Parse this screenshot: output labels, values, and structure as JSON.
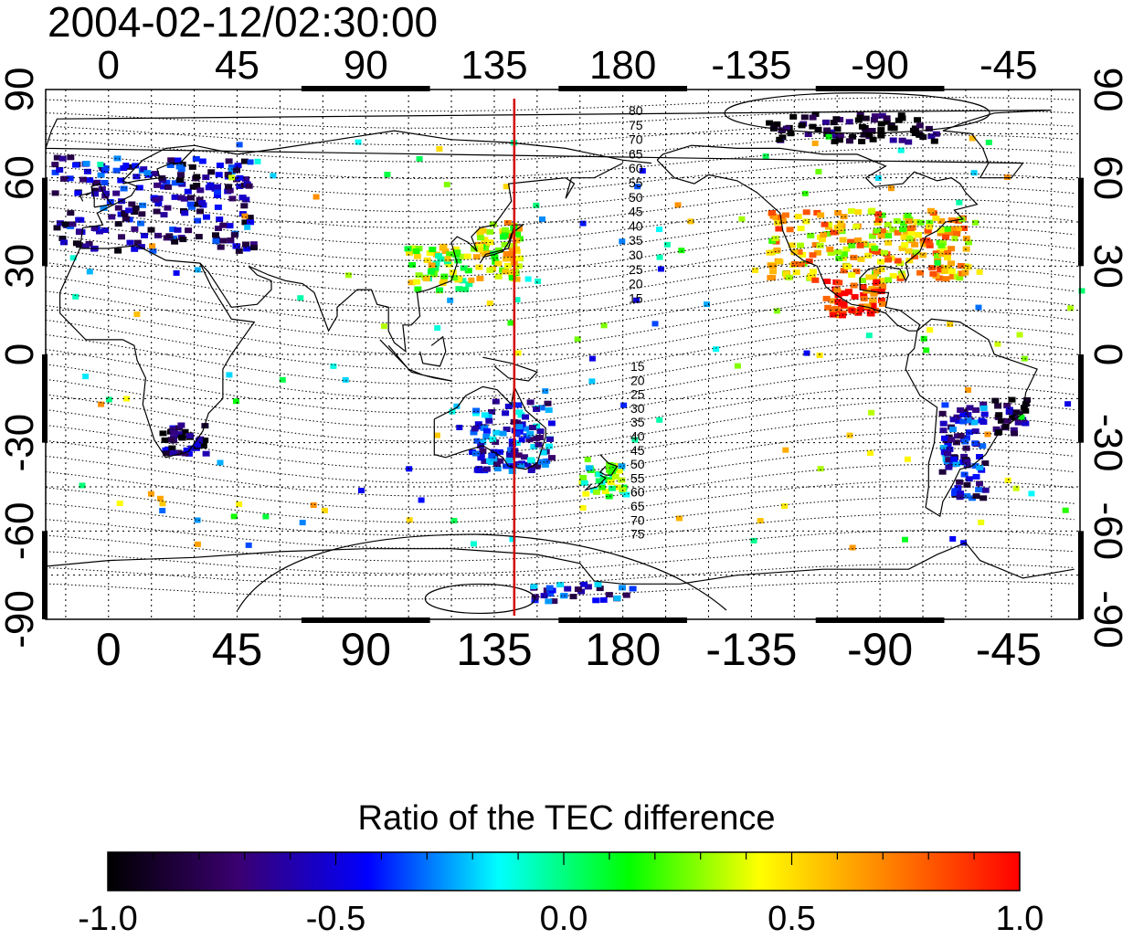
{
  "timestamp": "2004-02-12/02:30:00",
  "axes": {
    "lon_ticks": [
      "0",
      "45",
      "90",
      "135",
      "180",
      "-135",
      "-90",
      "-45"
    ],
    "lat_ticks": [
      "90",
      "60",
      "30",
      "0",
      "-30",
      "-60",
      "-90"
    ],
    "lon_range_deg": [
      -22,
      340
    ],
    "lat_range_deg": [
      -90,
      90
    ],
    "grid": "dotted, every 15 degrees"
  },
  "meridian_marker": {
    "lon": 142,
    "color": "#d40000"
  },
  "contours": {
    "north_labels": [
      "80",
      "75",
      "70",
      "65",
      "60",
      "55",
      "50",
      "45",
      "40",
      "35",
      "30",
      "25",
      "20",
      "15"
    ],
    "south_labels": [
      "15",
      "20",
      "25",
      "30",
      "35",
      "40",
      "45",
      "50",
      "55",
      "60",
      "65",
      "70",
      "75"
    ]
  },
  "colorbar": {
    "title": "Ratio of the TEC difference",
    "range": [
      -1.0,
      1.0
    ],
    "tick_labels": [
      "-1.0",
      "-0.5",
      "0.0",
      "0.5",
      "1.0"
    ],
    "colormap": [
      "#000000",
      "#3a0070",
      "#0000ff",
      "#00ffff",
      "#00ff00",
      "#ffff00",
      "#ff8000",
      "#ff0000"
    ]
  },
  "tec_regions": [
    {
      "region": "Europe",
      "lon": 15,
      "lat": 52,
      "value": -0.62
    },
    {
      "region": "North America",
      "lon": -95,
      "lat": 38,
      "value": 0.55
    },
    {
      "region": "Mexico and Central America",
      "lon": -100,
      "lat": 20,
      "value": 0.95
    },
    {
      "region": "Japan and East Asia",
      "lon": 135,
      "lat": 36,
      "value": 0.4
    },
    {
      "region": "China",
      "lon": 115,
      "lat": 30,
      "value": 0.3
    },
    {
      "region": "Australia",
      "lon": 140,
      "lat": -27,
      "value": -0.45
    },
    {
      "region": "New Zealand",
      "lon": 172,
      "lat": -42,
      "value": 0.1
    },
    {
      "region": "South America",
      "lon": -62,
      "lat": -32,
      "value": -0.55
    },
    {
      "region": "Brazil",
      "lon": -45,
      "lat": -20,
      "value": -0.85
    },
    {
      "region": "Southern Africa",
      "lon": 25,
      "lat": -28,
      "value": -0.8
    },
    {
      "region": "Antarctica",
      "lon": 165,
      "lat": -80,
      "value": -0.5
    },
    {
      "region": "Arctic",
      "lon": -100,
      "lat": 78,
      "value": -0.95
    }
  ]
}
